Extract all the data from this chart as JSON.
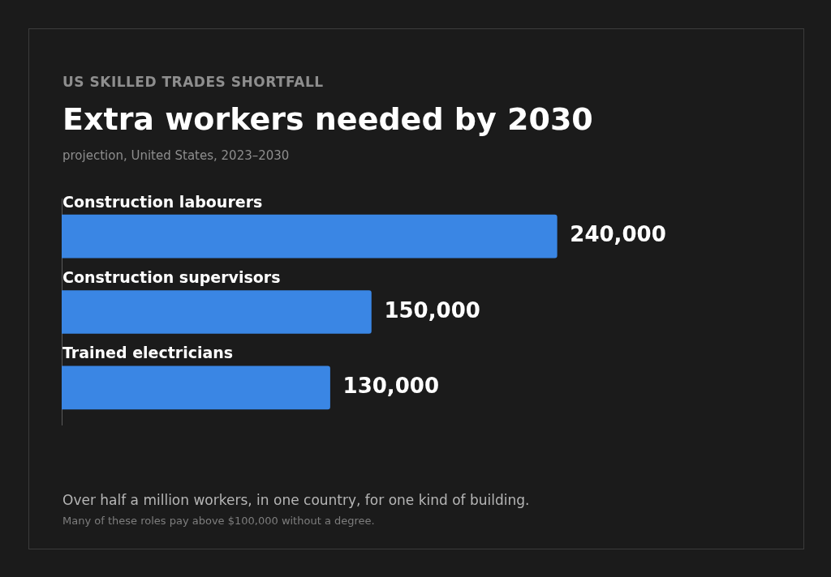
{
  "chart_data": {
    "type": "bar",
    "orientation": "horizontal",
    "subtitle": "US SKILLED TRADES SHORTFALL",
    "title": "Extra workers needed by 2030",
    "annotations": [
      "projection, United States, 2023–2030",
      "Over half a million workers, in one country, for one kind of building.",
      "Many of these roles pay above $100,000 without a degree."
    ],
    "categories": [
      "Construction labourers",
      "Construction supervisors",
      "Trained electricians"
    ],
    "values": [
      240000,
      150000,
      130000
    ],
    "value_labels": [
      "240,000",
      "150,000",
      "130,000"
    ],
    "color": "#3a86e4"
  }
}
